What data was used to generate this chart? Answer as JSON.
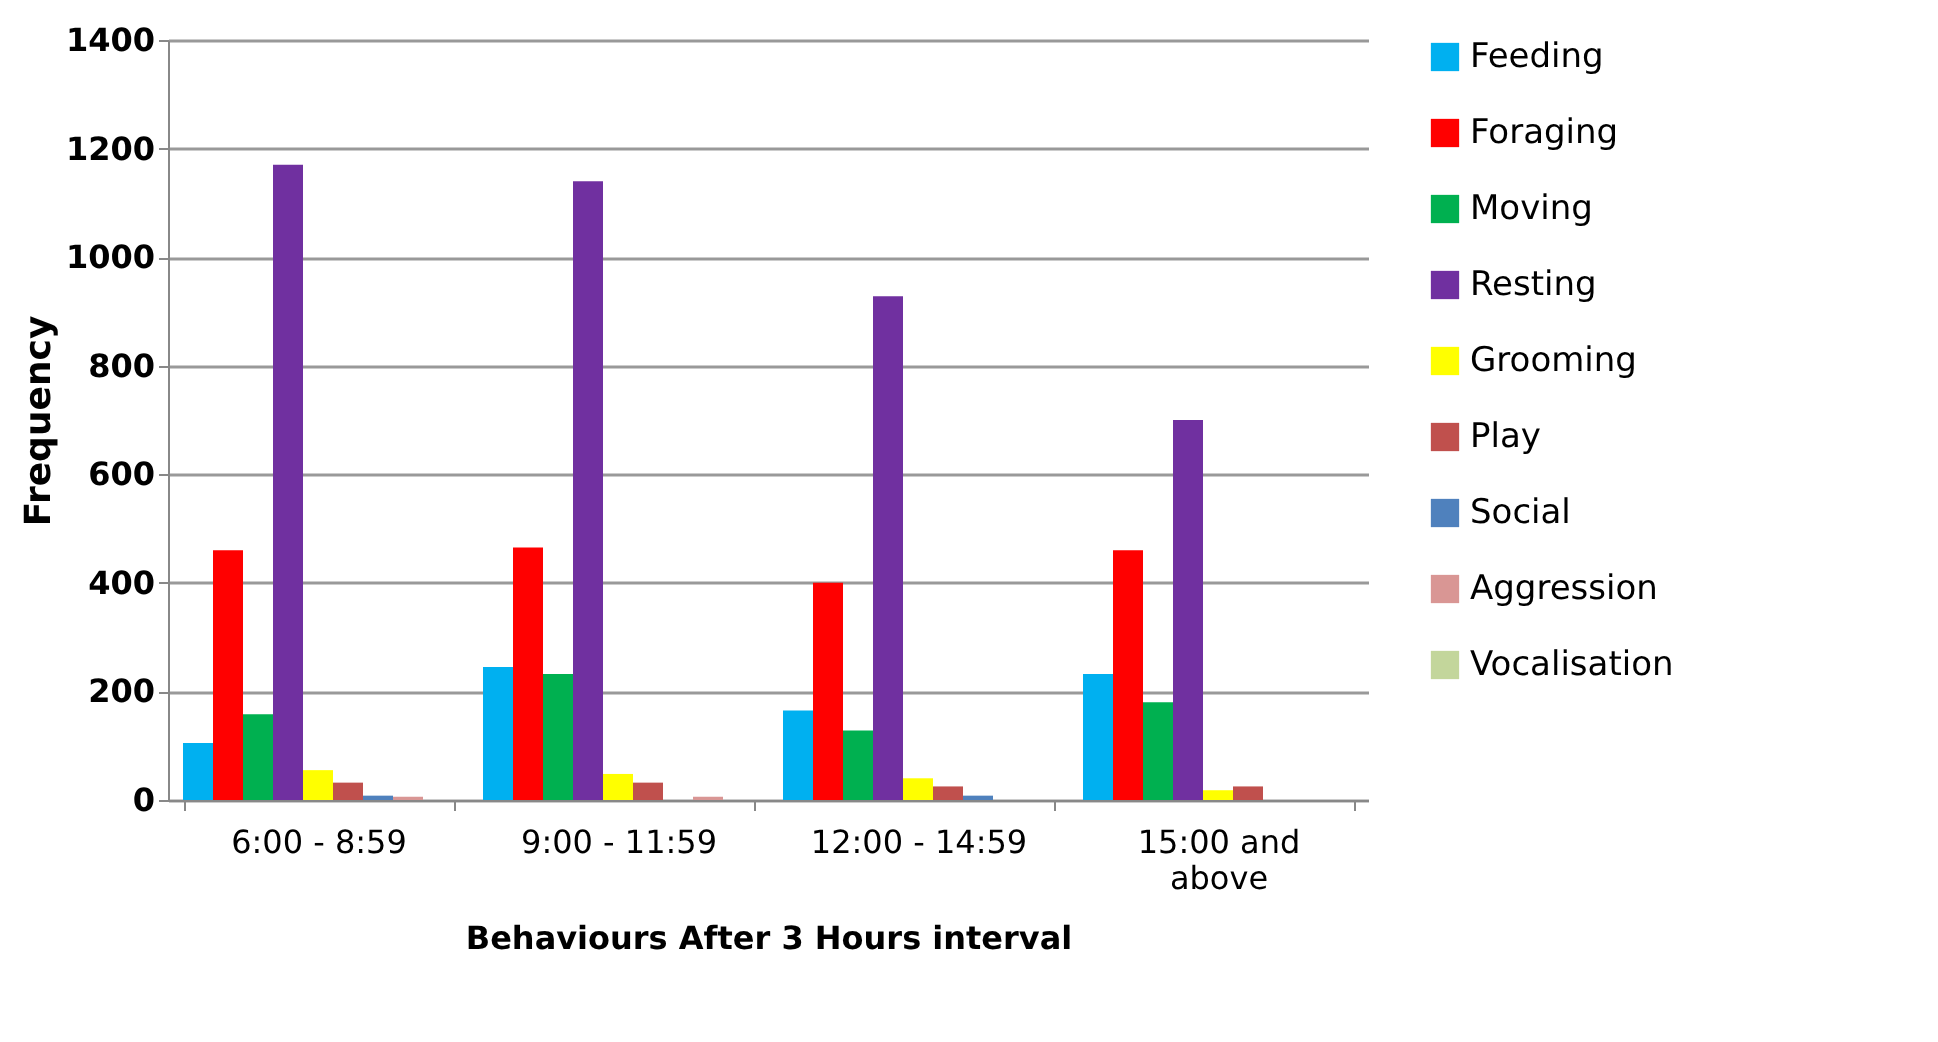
{
  "chart_data": {
    "type": "bar",
    "xlabel": "Behaviours  After 3 Hours interval",
    "ylabel": "Frequency",
    "categories": [
      "6:00 - 8:59",
      "9:00 - 11:59",
      "12:00 - 14:59",
      "15:00 and above"
    ],
    "series": [
      {
        "name": "Feeding",
        "color": "#00b0f0",
        "values": [
          105,
          245,
          165,
          232
        ]
      },
      {
        "name": "Foraging",
        "color": "#ff0000",
        "values": [
          460,
          465,
          400,
          460
        ]
      },
      {
        "name": "Moving",
        "color": "#00b050",
        "values": [
          158,
          232,
          128,
          180
        ]
      },
      {
        "name": "Resting",
        "color": "#7030a0",
        "values": [
          1170,
          1140,
          928,
          700
        ]
      },
      {
        "name": "Grooming",
        "color": "#ffff00",
        "values": [
          55,
          48,
          40,
          18
        ]
      },
      {
        "name": "Play",
        "color": "#c0504d",
        "values": [
          32,
          32,
          25,
          25
        ]
      },
      {
        "name": "Social",
        "color": "#4f81bd",
        "values": [
          8,
          0,
          8,
          0
        ]
      },
      {
        "name": "Aggression",
        "color": "#d99694",
        "values": [
          6,
          6,
          0,
          0
        ]
      },
      {
        "name": "Vocalisation",
        "color": "#c3d69b",
        "values": [
          0,
          0,
          0,
          0
        ]
      }
    ],
    "ylim": [
      0,
      1400
    ],
    "yticks": [
      0,
      200,
      400,
      600,
      800,
      1000,
      1200,
      1400
    ],
    "grid": "y",
    "legend": "right"
  }
}
